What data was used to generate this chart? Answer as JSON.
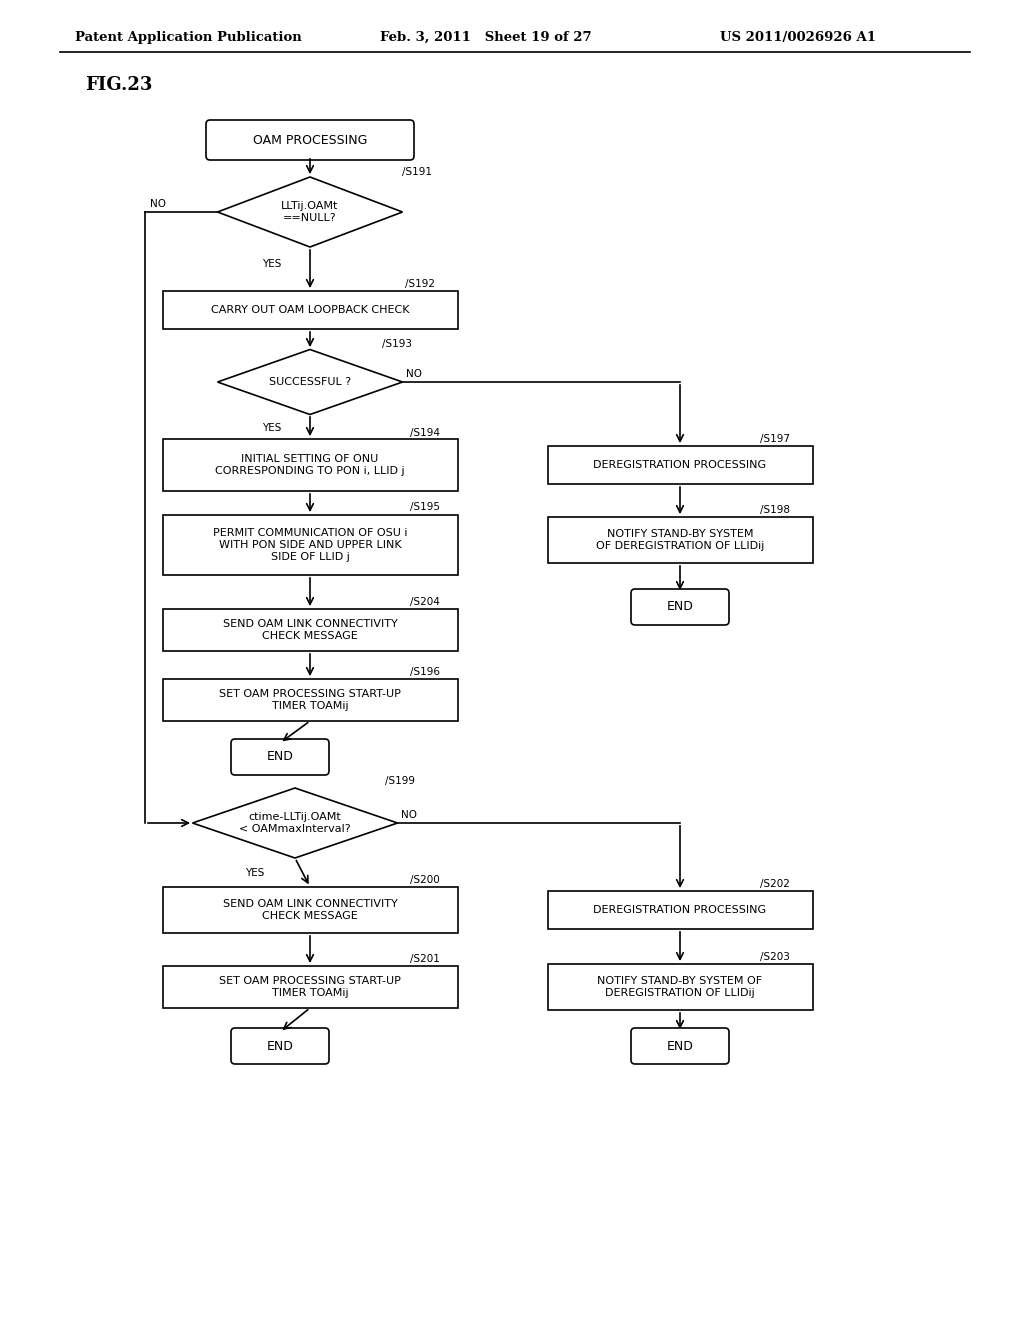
{
  "header_left": "Patent Application Publication",
  "header_mid": "Feb. 3, 2011   Sheet 19 of 27",
  "header_right": "US 2011/0026926 A1",
  "fig_label": "FIG.23",
  "bg_color": "#ffffff",
  "lw": 1.2,
  "font_size_label": 7.8,
  "font_size_step": 7.5,
  "font_size_end": 8.5,
  "font_size_header": 9.5,
  "font_size_fig": 13
}
